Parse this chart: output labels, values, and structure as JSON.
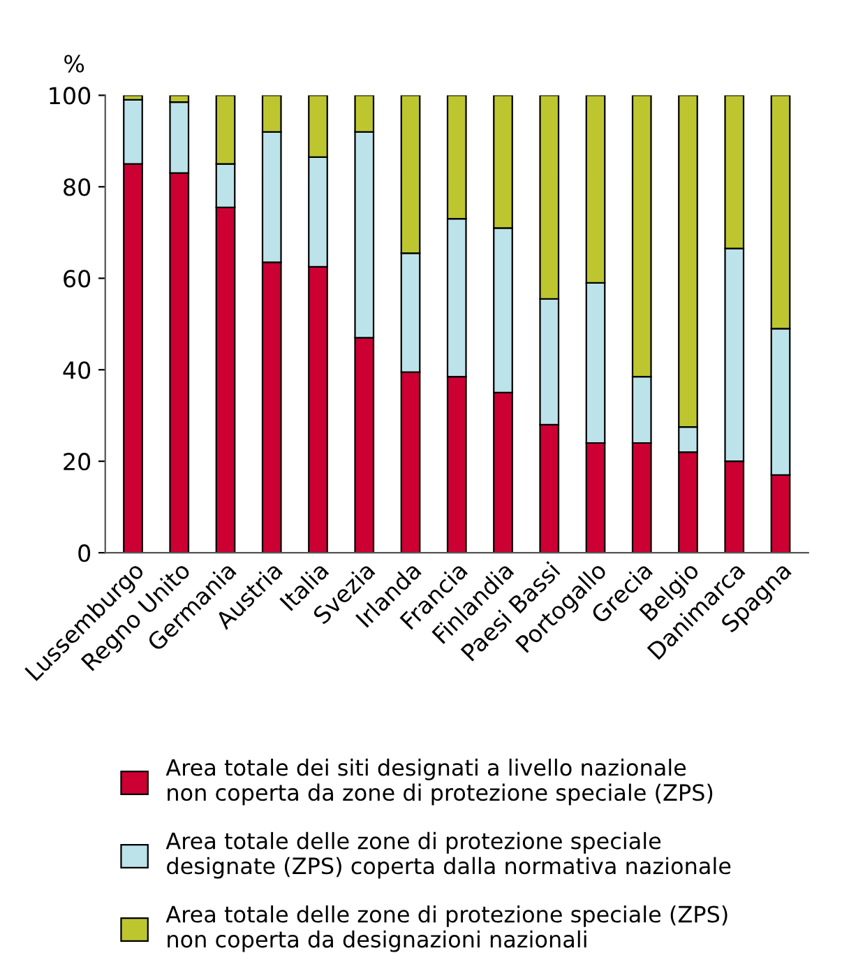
{
  "chart_data": {
    "type": "bar",
    "stacked": true,
    "ylabel": "%",
    "categories": [
      "Lussemburgo",
      "Regno Unito",
      "Germania",
      "Austria",
      "Italia",
      "Svezia",
      "Irlanda",
      "Francia",
      "Finlandia",
      "Paesi Bassi",
      "Portogallo",
      "Grecia",
      "Belgio",
      "Danimarca",
      "Spagna"
    ],
    "series": [
      {
        "name": "Area totale dei siti designati a livello nazionale\nnon coperta da zone di protezione speciale (ZPS)",
        "color": "#cc0033",
        "values": [
          85,
          83,
          75.5,
          63.5,
          62.5,
          47,
          39.5,
          38.5,
          35,
          28,
          24,
          24,
          22,
          20,
          17
        ]
      },
      {
        "name": "Area totale delle zone di protezione speciale\ndesignate (ZPS) coperta dalla normativa nazionale",
        "color": "#bde3ea",
        "values": [
          14,
          15.5,
          9.5,
          28.5,
          24,
          45,
          26,
          34.5,
          36,
          27.5,
          35,
          14.5,
          5.5,
          46.5,
          32
        ]
      },
      {
        "name": "Area totale delle zone di protezione speciale (ZPS)\nnon coperta da designazioni nazionali",
        "color": "#bdc62f",
        "values": [
          1,
          1.5,
          15,
          8,
          13.5,
          8,
          34.5,
          27,
          29,
          44.5,
          41,
          61.5,
          72.5,
          33.5,
          51
        ]
      }
    ],
    "ylim": [
      0,
      100
    ],
    "yticks": [
      0,
      20,
      40,
      60,
      80,
      100
    ],
    "grid": false,
    "legend": "bottom"
  }
}
